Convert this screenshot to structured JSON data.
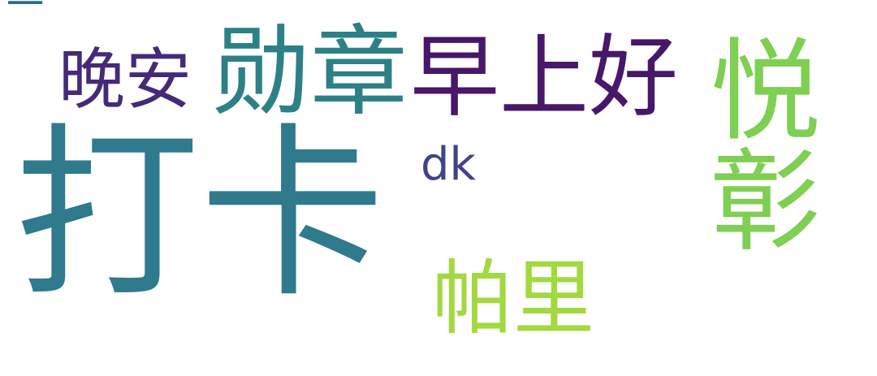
{
  "words": [
    {
      "text": "打卡",
      "color": "#2f7a8d"
    },
    {
      "text": "勋章",
      "color": "#2c8186"
    },
    {
      "text": "早上好",
      "color": "#471769"
    },
    {
      "text": "晚安",
      "color": "#452a78"
    },
    {
      "text": "dk",
      "color": "#3f4487"
    },
    {
      "text": "帕里",
      "color": "#a3d940"
    },
    {
      "text": "一",
      "color": "#2d6b8a"
    },
    {
      "text": "悦彰",
      "color": "#7fcf52"
    }
  ]
}
